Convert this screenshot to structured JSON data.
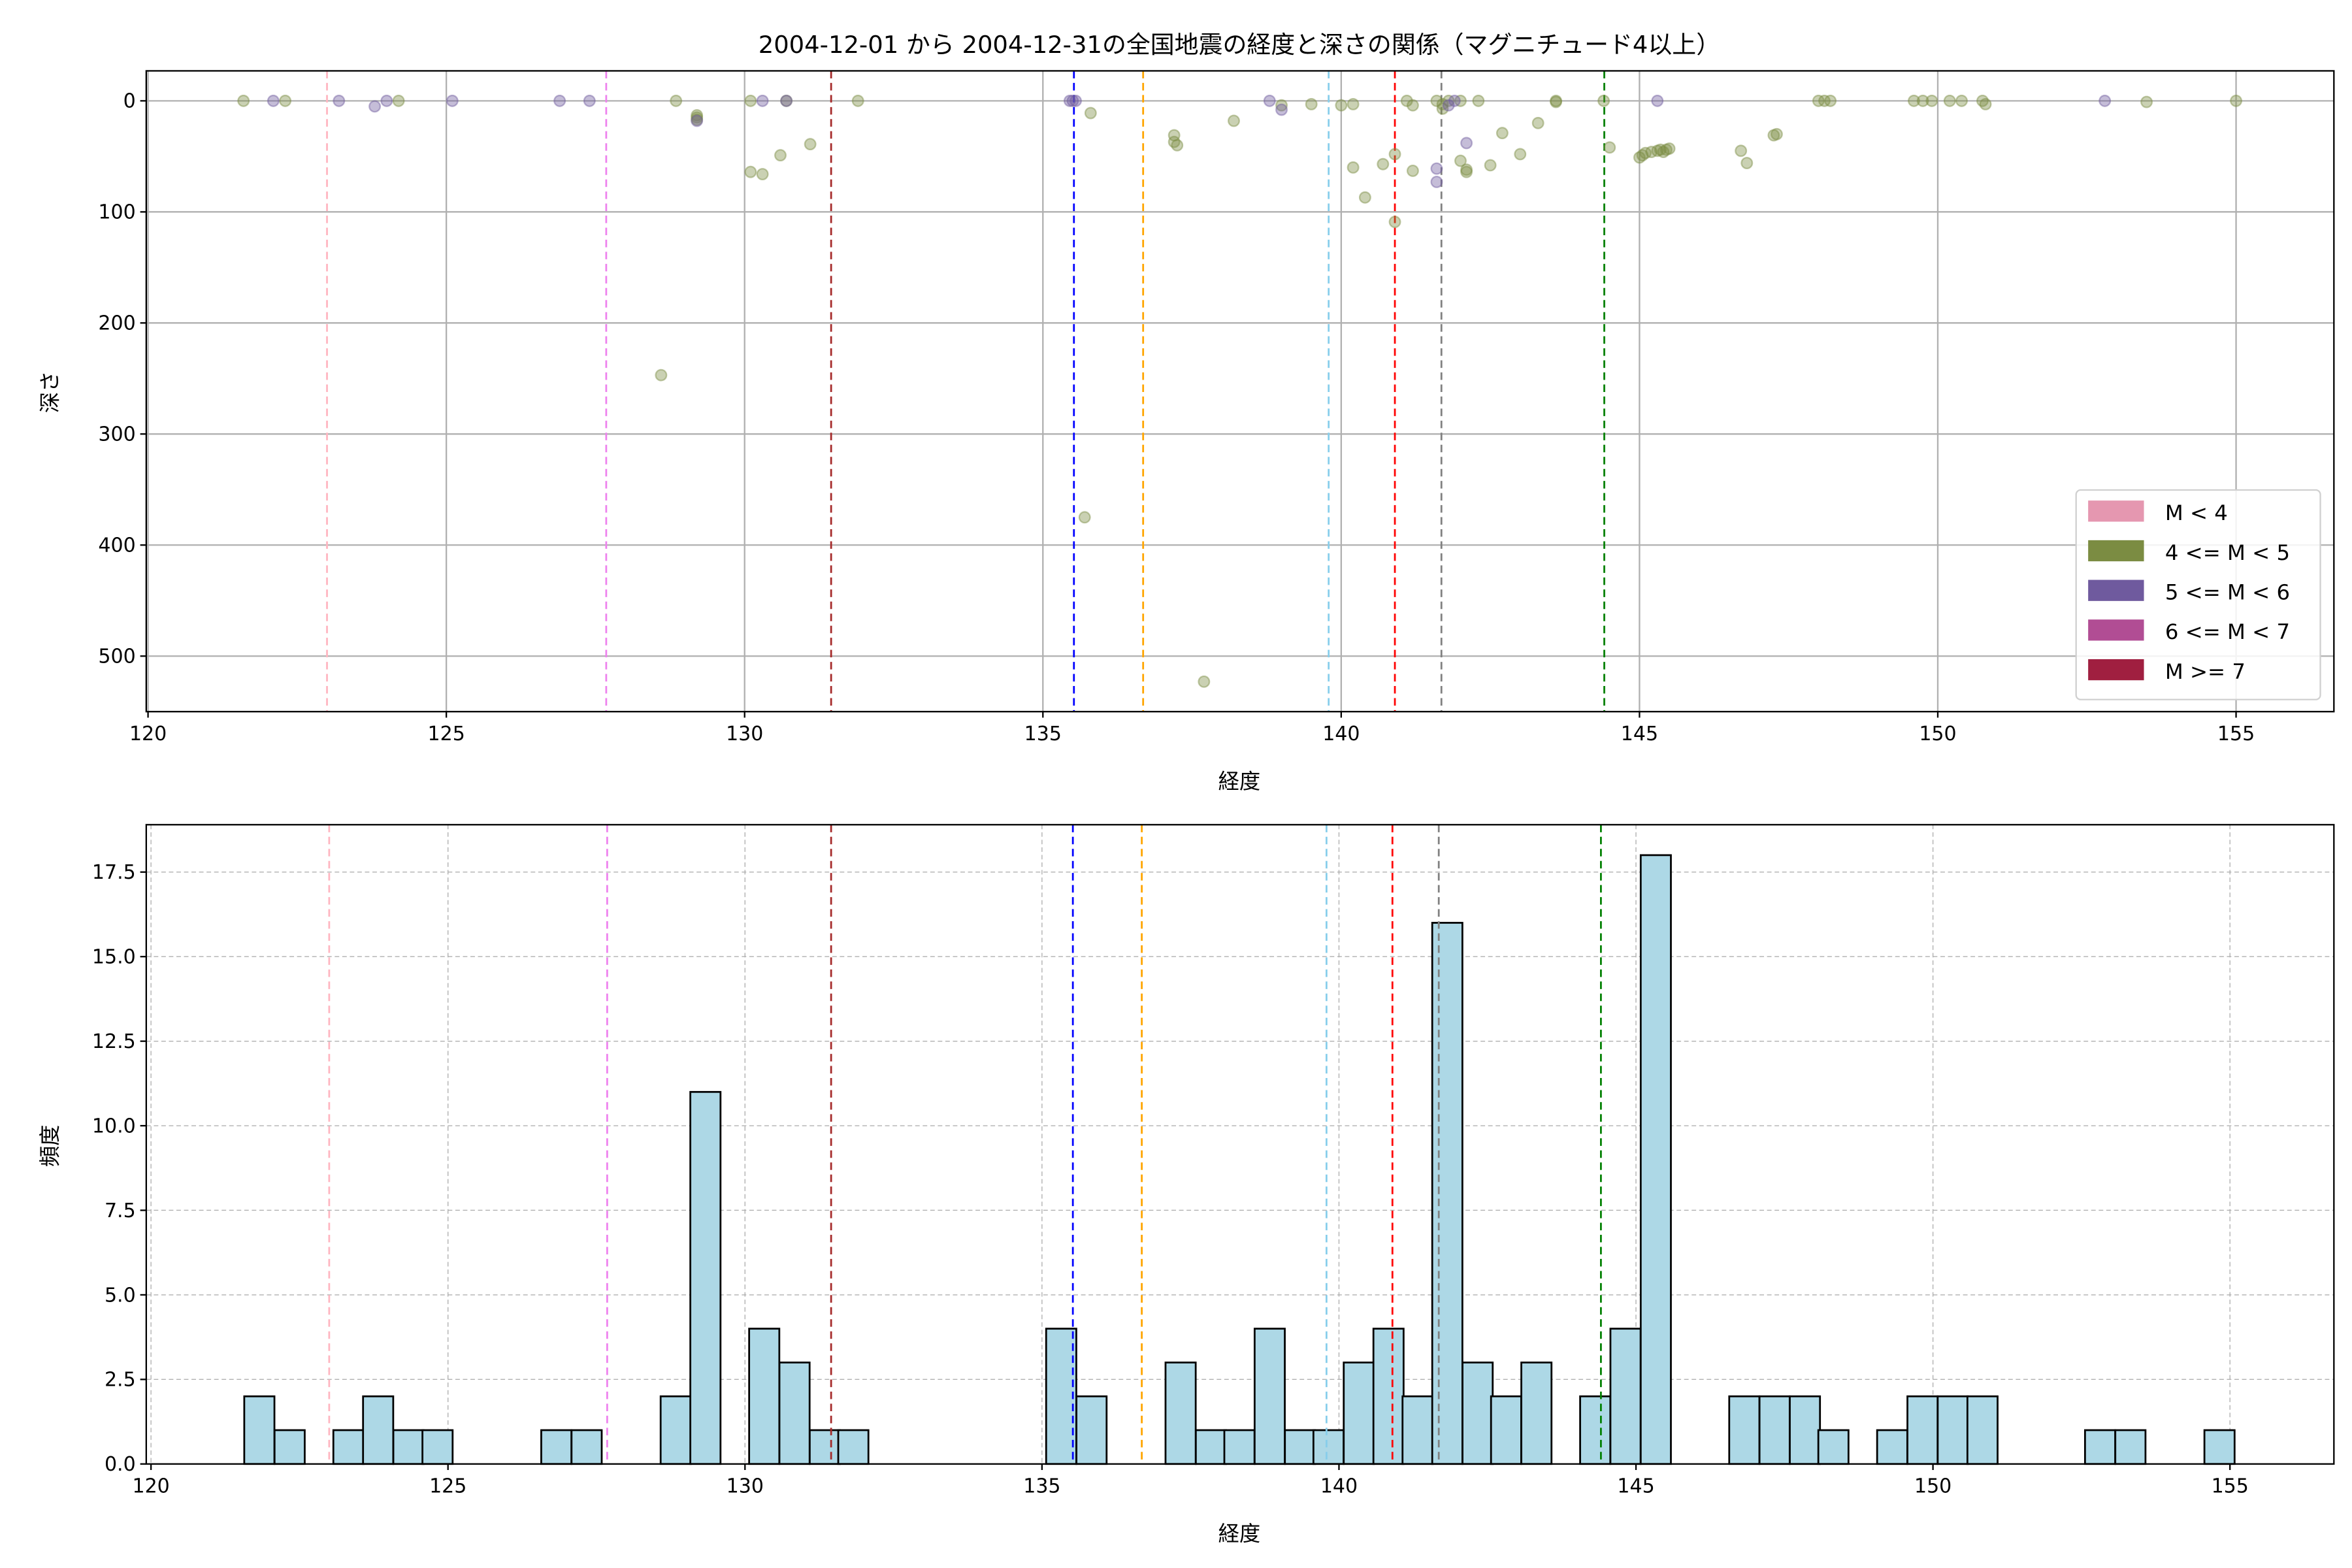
{
  "chart_data": [
    {
      "type": "scatter",
      "title": "2004-12-01 から 2004-12-31の全国地震の経度と深さの関係（マグニチュード4以上）",
      "xlabel": "経度",
      "ylabel": "深さ",
      "xlim": [
        119.97,
        156.64
      ],
      "ylim": [
        550,
        -27
      ],
      "y_inverted": true,
      "xticks": [
        120,
        125,
        130,
        135,
        140,
        145,
        150,
        155
      ],
      "yticks": [
        0,
        100,
        200,
        300,
        400,
        500
      ],
      "grid": true,
      "legend_position": "lower-right",
      "legend": [
        {
          "label": "M < 4",
          "color": "#e597b0"
        },
        {
          "label": "4 <= M < 5",
          "color": "#7b8c42"
        },
        {
          "label": "5 <= M < 6",
          "color": "#6f5a9e"
        },
        {
          "label": "6 <= M < 7",
          "color": "#b14d94"
        },
        {
          "label": "M >= 7",
          "color": "#a01f40"
        }
      ],
      "series": [
        {
          "name": "4 <= M < 5",
          "color": "#7b8c42",
          "points": [
            [
              121.6,
              0
            ],
            [
              122.3,
              0
            ],
            [
              124.2,
              0
            ],
            [
              128.85,
              0
            ],
            [
              129.2,
              13
            ],
            [
              129.2,
              15
            ],
            [
              129.2,
              17
            ],
            [
              130.1,
              0
            ],
            [
              130.7,
              0
            ],
            [
              131.9,
              0
            ],
            [
              130.1,
              64
            ],
            [
              130.3,
              66
            ],
            [
              130.6,
              49
            ],
            [
              131.1,
              39
            ],
            [
              128.6,
              247
            ],
            [
              135.8,
              11
            ],
            [
              135.7,
              375
            ],
            [
              137.2,
              31
            ],
            [
              137.2,
              37
            ],
            [
              137.25,
              40
            ],
            [
              138.2,
              18
            ],
            [
              137.7,
              523
            ],
            [
              139.0,
              4
            ],
            [
              139.5,
              3
            ],
            [
              140.0,
              4
            ],
            [
              140.2,
              3
            ],
            [
              140.2,
              60
            ],
            [
              140.4,
              87
            ],
            [
              140.7,
              57
            ],
            [
              140.9,
              48
            ],
            [
              140.9,
              109
            ],
            [
              141.1,
              0
            ],
            [
              141.2,
              4
            ],
            [
              141.2,
              63
            ],
            [
              141.6,
              0
            ],
            [
              141.7,
              3
            ],
            [
              141.7,
              7
            ],
            [
              141.8,
              0
            ],
            [
              142.0,
              0
            ],
            [
              142.0,
              54
            ],
            [
              142.1,
              62
            ],
            [
              142.1,
              64
            ],
            [
              142.3,
              0
            ],
            [
              142.5,
              58
            ],
            [
              142.7,
              29
            ],
            [
              143.0,
              48
            ],
            [
              143.3,
              20
            ],
            [
              143.6,
              0
            ],
            [
              143.6,
              1
            ],
            [
              144.4,
              0
            ],
            [
              144.5,
              42
            ],
            [
              145.0,
              51
            ],
            [
              145.05,
              49
            ],
            [
              145.1,
              47
            ],
            [
              145.2,
              46
            ],
            [
              145.3,
              45
            ],
            [
              145.35,
              44
            ],
            [
              145.4,
              46
            ],
            [
              145.45,
              44
            ],
            [
              145.5,
              43
            ],
            [
              146.7,
              45
            ],
            [
              146.8,
              56
            ],
            [
              147.25,
              31
            ],
            [
              147.3,
              30
            ],
            [
              148.0,
              0
            ],
            [
              148.1,
              0
            ],
            [
              148.2,
              0
            ],
            [
              149.6,
              0
            ],
            [
              149.75,
              0
            ],
            [
              149.9,
              0
            ],
            [
              150.2,
              0
            ],
            [
              150.4,
              0
            ],
            [
              150.75,
              0
            ],
            [
              150.8,
              3
            ],
            [
              153.5,
              1
            ],
            [
              155.0,
              0
            ]
          ]
        },
        {
          "name": "5 <= M < 6",
          "color": "#6f5a9e",
          "points": [
            [
              122.1,
              0
            ],
            [
              123.2,
              0
            ],
            [
              123.8,
              5
            ],
            [
              124.0,
              0
            ],
            [
              125.1,
              0
            ],
            [
              126.9,
              0
            ],
            [
              127.4,
              0
            ],
            [
              129.2,
              18
            ],
            [
              130.3,
              0
            ],
            [
              130.7,
              0
            ],
            [
              135.45,
              0
            ],
            [
              135.5,
              0
            ],
            [
              135.55,
              0
            ],
            [
              138.8,
              0
            ],
            [
              139.0,
              8
            ],
            [
              141.6,
              61
            ],
            [
              141.6,
              73
            ],
            [
              141.8,
              4
            ],
            [
              141.9,
              0
            ],
            [
              142.1,
              38
            ],
            [
              145.3,
              0
            ],
            [
              152.8,
              0
            ]
          ]
        }
      ],
      "reference_lines": [
        {
          "x": 123.0,
          "color": "#ffb6c1"
        },
        {
          "x": 127.68,
          "color": "#ee82ee"
        },
        {
          "x": 131.45,
          "color": "#a52a2a"
        },
        {
          "x": 135.52,
          "color": "#0000ff"
        },
        {
          "x": 136.68,
          "color": "#ffa500"
        },
        {
          "x": 139.79,
          "color": "#87ceeb"
        },
        {
          "x": 140.9,
          "color": "#ff0000"
        },
        {
          "x": 141.68,
          "color": "#808080"
        },
        {
          "x": 144.41,
          "color": "#008000"
        }
      ]
    },
    {
      "type": "bar",
      "subtype": "histogram",
      "xlabel": "経度",
      "ylabel": "頻度",
      "xlim": [
        119.92,
        156.75
      ],
      "ylim": [
        0,
        18.9
      ],
      "xticks": [
        120,
        125,
        130,
        135,
        140,
        145,
        150,
        155
      ],
      "yticks": [
        "0.0",
        "2.5",
        "5.0",
        "7.5",
        "10.0",
        "12.5",
        "15.0",
        "17.5"
      ],
      "grid": "dashed",
      "bar_color": "#add8e6",
      "edge_color": "#000000",
      "bin_width": 0.508,
      "bins": [
        [
          121.57,
          2
        ],
        [
          122.08,
          1
        ],
        [
          123.07,
          1
        ],
        [
          123.57,
          2
        ],
        [
          124.08,
          1
        ],
        [
          124.57,
          1
        ],
        [
          126.57,
          1
        ],
        [
          127.08,
          1
        ],
        [
          128.58,
          2
        ],
        [
          129.08,
          11
        ],
        [
          130.07,
          4
        ],
        [
          130.58,
          3
        ],
        [
          131.09,
          1
        ],
        [
          131.57,
          1
        ],
        [
          135.07,
          4
        ],
        [
          135.58,
          2
        ],
        [
          137.08,
          3
        ],
        [
          137.59,
          1
        ],
        [
          138.07,
          1
        ],
        [
          138.58,
          4
        ],
        [
          139.09,
          1
        ],
        [
          139.57,
          1
        ],
        [
          140.08,
          3
        ],
        [
          140.58,
          4
        ],
        [
          141.07,
          2
        ],
        [
          141.57,
          16
        ],
        [
          142.08,
          3
        ],
        [
          142.56,
          2
        ],
        [
          143.07,
          3
        ],
        [
          144.06,
          2
        ],
        [
          144.57,
          4
        ],
        [
          145.08,
          18
        ],
        [
          146.57,
          2
        ],
        [
          147.08,
          2
        ],
        [
          147.59,
          2
        ],
        [
          148.07,
          1
        ],
        [
          149.06,
          1
        ],
        [
          149.57,
          2
        ],
        [
          150.08,
          2
        ],
        [
          150.58,
          2
        ],
        [
          152.56,
          1
        ],
        [
          153.07,
          1
        ],
        [
          154.57,
          1
        ]
      ],
      "reference_lines": [
        {
          "x": 123.0,
          "color": "#ffb6c1"
        },
        {
          "x": 127.68,
          "color": "#ee82ee"
        },
        {
          "x": 131.45,
          "color": "#a52a2a"
        },
        {
          "x": 135.52,
          "color": "#0000ff"
        },
        {
          "x": 136.68,
          "color": "#ffa500"
        },
        {
          "x": 139.79,
          "color": "#87ceeb"
        },
        {
          "x": 140.9,
          "color": "#ff0000"
        },
        {
          "x": 141.68,
          "color": "#808080"
        },
        {
          "x": 144.41,
          "color": "#008000"
        }
      ]
    }
  ]
}
